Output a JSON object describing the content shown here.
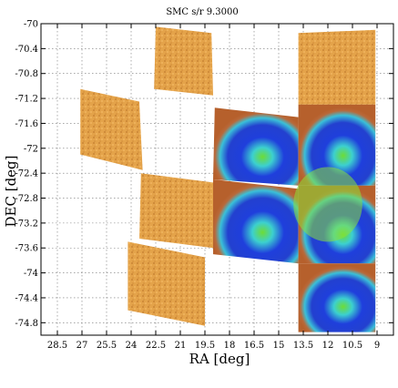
{
  "chart_data": {
    "type": "heatmap",
    "title": "SMC s/r 9.3000",
    "xlabel": "RA [deg]",
    "ylabel": "DEC [deg]",
    "xlim": [
      29.5,
      8.0
    ],
    "ylim": [
      -75.0,
      -70.0
    ],
    "x_inverted": true,
    "grid": true,
    "x_ticks": [
      28.5,
      27,
      25.5,
      24,
      22.5,
      21,
      19.5,
      18,
      16.5,
      15,
      13.5,
      12,
      10.5,
      9
    ],
    "x_tick_labels": [
      "28.5",
      "27",
      "25.5",
      "24",
      "22.5",
      "21",
      "19.5",
      "18",
      "16.5",
      "15",
      "13.5",
      "12",
      "10.5",
      "9"
    ],
    "y_ticks": [
      -70,
      -70.4,
      -70.8,
      -71.2,
      -71.6,
      -72,
      -72.4,
      -72.8,
      -73.2,
      -73.6,
      -74,
      -74.4,
      -74.8
    ],
    "y_tick_labels": [
      "-70",
      "-70.4",
      "-70.8",
      "-71.2",
      "-71.6",
      "-72",
      "-72.4",
      "-72.8",
      "-73.2",
      "-73.6",
      "-74",
      "-74.4",
      "-74.8"
    ],
    "colormap": [
      "#2c8f2c",
      "#3ad6e0",
      "#1b3ad8",
      "#d79a38",
      "#8f3b1f"
    ],
    "fields": [
      {
        "id": "f1",
        "fill": "orange",
        "corners": [
          [
            22.5,
            -70.05
          ],
          [
            19.1,
            -70.15
          ],
          [
            19.0,
            -71.15
          ],
          [
            22.6,
            -71.05
          ]
        ]
      },
      {
        "id": "f2",
        "fill": "orange",
        "corners": [
          [
            13.8,
            -70.15
          ],
          [
            9.1,
            -70.1
          ],
          [
            9.1,
            -71.3
          ],
          [
            13.8,
            -71.3
          ]
        ]
      },
      {
        "id": "f3",
        "fill": "orange",
        "corners": [
          [
            27.1,
            -71.05
          ],
          [
            23.5,
            -71.25
          ],
          [
            23.3,
            -72.35
          ],
          [
            27.1,
            -72.1
          ]
        ]
      },
      {
        "id": "f4",
        "fill": "mixed",
        "corners": [
          [
            18.9,
            -71.35
          ],
          [
            13.8,
            -71.5
          ],
          [
            13.8,
            -72.6
          ],
          [
            19.0,
            -72.5
          ]
        ]
      },
      {
        "id": "f5",
        "fill": "mixed",
        "corners": [
          [
            13.8,
            -71.3
          ],
          [
            9.1,
            -71.3
          ],
          [
            9.1,
            -72.6
          ],
          [
            13.8,
            -72.6
          ]
        ]
      },
      {
        "id": "f6",
        "fill": "orange",
        "corners": [
          [
            23.4,
            -72.4
          ],
          [
            19.0,
            -72.55
          ],
          [
            19.0,
            -73.6
          ],
          [
            23.5,
            -73.45
          ]
        ]
      },
      {
        "id": "f7",
        "fill": "mixed",
        "corners": [
          [
            19.0,
            -72.5
          ],
          [
            13.8,
            -72.65
          ],
          [
            13.8,
            -73.85
          ],
          [
            19.0,
            -73.7
          ]
        ]
      },
      {
        "id": "f8",
        "fill": "mixed",
        "corners": [
          [
            13.8,
            -72.6
          ],
          [
            9.1,
            -72.6
          ],
          [
            9.1,
            -73.85
          ],
          [
            13.8,
            -73.85
          ]
        ]
      },
      {
        "id": "f9",
        "fill": "orange",
        "corners": [
          [
            24.2,
            -73.5
          ],
          [
            19.5,
            -73.75
          ],
          [
            19.5,
            -74.85
          ],
          [
            24.2,
            -74.6
          ]
        ]
      },
      {
        "id": "f10",
        "fill": "mixed",
        "corners": [
          [
            13.8,
            -73.85
          ],
          [
            9.1,
            -73.85
          ],
          [
            9.1,
            -74.95
          ],
          [
            13.8,
            -74.95
          ]
        ]
      }
    ],
    "density_peak": {
      "x": 12.0,
      "y": -72.9,
      "rx": 2.1,
      "ry": 0.6
    }
  }
}
